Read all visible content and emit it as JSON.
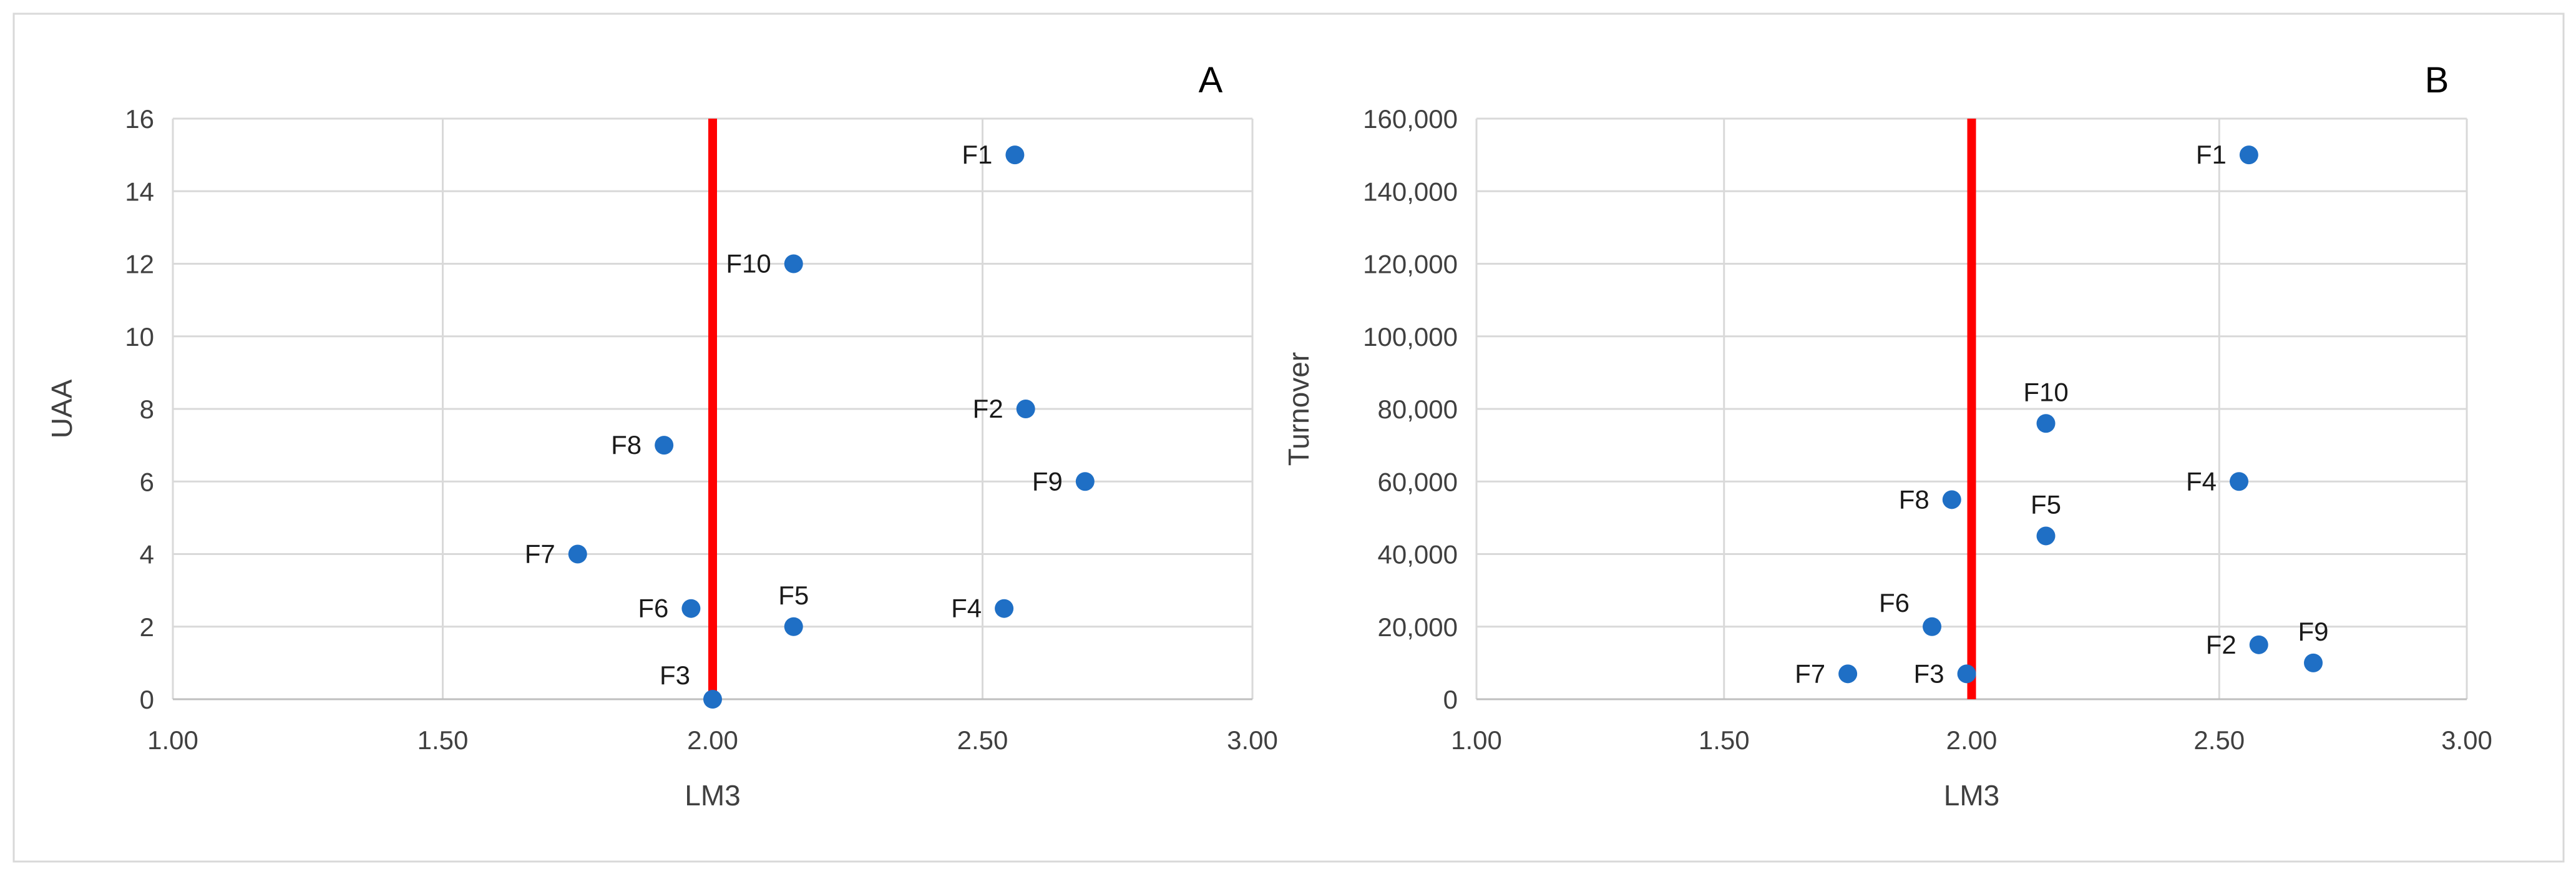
{
  "chart_data": [
    {
      "type": "scatter",
      "panel_label": "A",
      "xlabel": "LM3",
      "ylabel": "UAA",
      "xlim": [
        1.0,
        3.0
      ],
      "ylim": [
        0,
        16
      ],
      "x_ticks": [
        "1.00",
        "1.50",
        "2.00",
        "2.50",
        "3.00"
      ],
      "y_ticks": [
        "0",
        "2",
        "4",
        "6",
        "8",
        "10",
        "12",
        "14",
        "16"
      ],
      "grid": true,
      "marker_color": "#1f6fc5",
      "reference_line": {
        "x": 2.0,
        "color": "#ff0000"
      },
      "points": [
        {
          "label": "F1",
          "x": 2.56,
          "y": 15,
          "label_pos": "left"
        },
        {
          "label": "F10",
          "x": 2.15,
          "y": 12,
          "label_pos": "left"
        },
        {
          "label": "F2",
          "x": 2.58,
          "y": 8,
          "label_pos": "left"
        },
        {
          "label": "F8",
          "x": 1.91,
          "y": 7,
          "label_pos": "left"
        },
        {
          "label": "F9",
          "x": 2.69,
          "y": 6,
          "label_pos": "left"
        },
        {
          "label": "F7",
          "x": 1.75,
          "y": 4,
          "label_pos": "left"
        },
        {
          "label": "F6",
          "x": 1.96,
          "y": 2.5,
          "label_pos": "left"
        },
        {
          "label": "F5",
          "x": 2.15,
          "y": 2,
          "label_pos": "above"
        },
        {
          "label": "F4",
          "x": 2.54,
          "y": 2.5,
          "label_pos": "left"
        },
        {
          "label": "F3",
          "x": 2.0,
          "y": 0,
          "label_pos": "upper-left"
        }
      ]
    },
    {
      "type": "scatter",
      "panel_label": "B",
      "xlabel": "LM3",
      "ylabel": "Turnover",
      "xlim": [
        1.0,
        3.0
      ],
      "ylim": [
        0,
        160000
      ],
      "x_ticks": [
        "1.00",
        "1.50",
        "2.00",
        "2.50",
        "3.00"
      ],
      "y_ticks": [
        "0",
        "20,000",
        "40,000",
        "60,000",
        "80,000",
        "100,000",
        "120,000",
        "140,000",
        "160,000"
      ],
      "grid": true,
      "marker_color": "#1f6fc5",
      "reference_line": {
        "x": 2.0,
        "color": "#ff0000"
      },
      "points": [
        {
          "label": "F1",
          "x": 2.56,
          "y": 150000,
          "label_pos": "left"
        },
        {
          "label": "F10",
          "x": 2.15,
          "y": 76000,
          "label_pos": "above"
        },
        {
          "label": "F4",
          "x": 2.54,
          "y": 60000,
          "label_pos": "left"
        },
        {
          "label": "F8",
          "x": 1.96,
          "y": 55000,
          "label_pos": "left"
        },
        {
          "label": "F5",
          "x": 2.15,
          "y": 45000,
          "label_pos": "above"
        },
        {
          "label": "F6",
          "x": 1.92,
          "y": 20000,
          "label_pos": "upper-left"
        },
        {
          "label": "F2",
          "x": 2.58,
          "y": 15000,
          "label_pos": "left"
        },
        {
          "label": "F9",
          "x": 2.69,
          "y": 10000,
          "label_pos": "above"
        },
        {
          "label": "F7",
          "x": 1.75,
          "y": 7000,
          "label_pos": "left"
        },
        {
          "label": "F3",
          "x": 1.99,
          "y": 7000,
          "label_pos": "left"
        }
      ]
    }
  ]
}
